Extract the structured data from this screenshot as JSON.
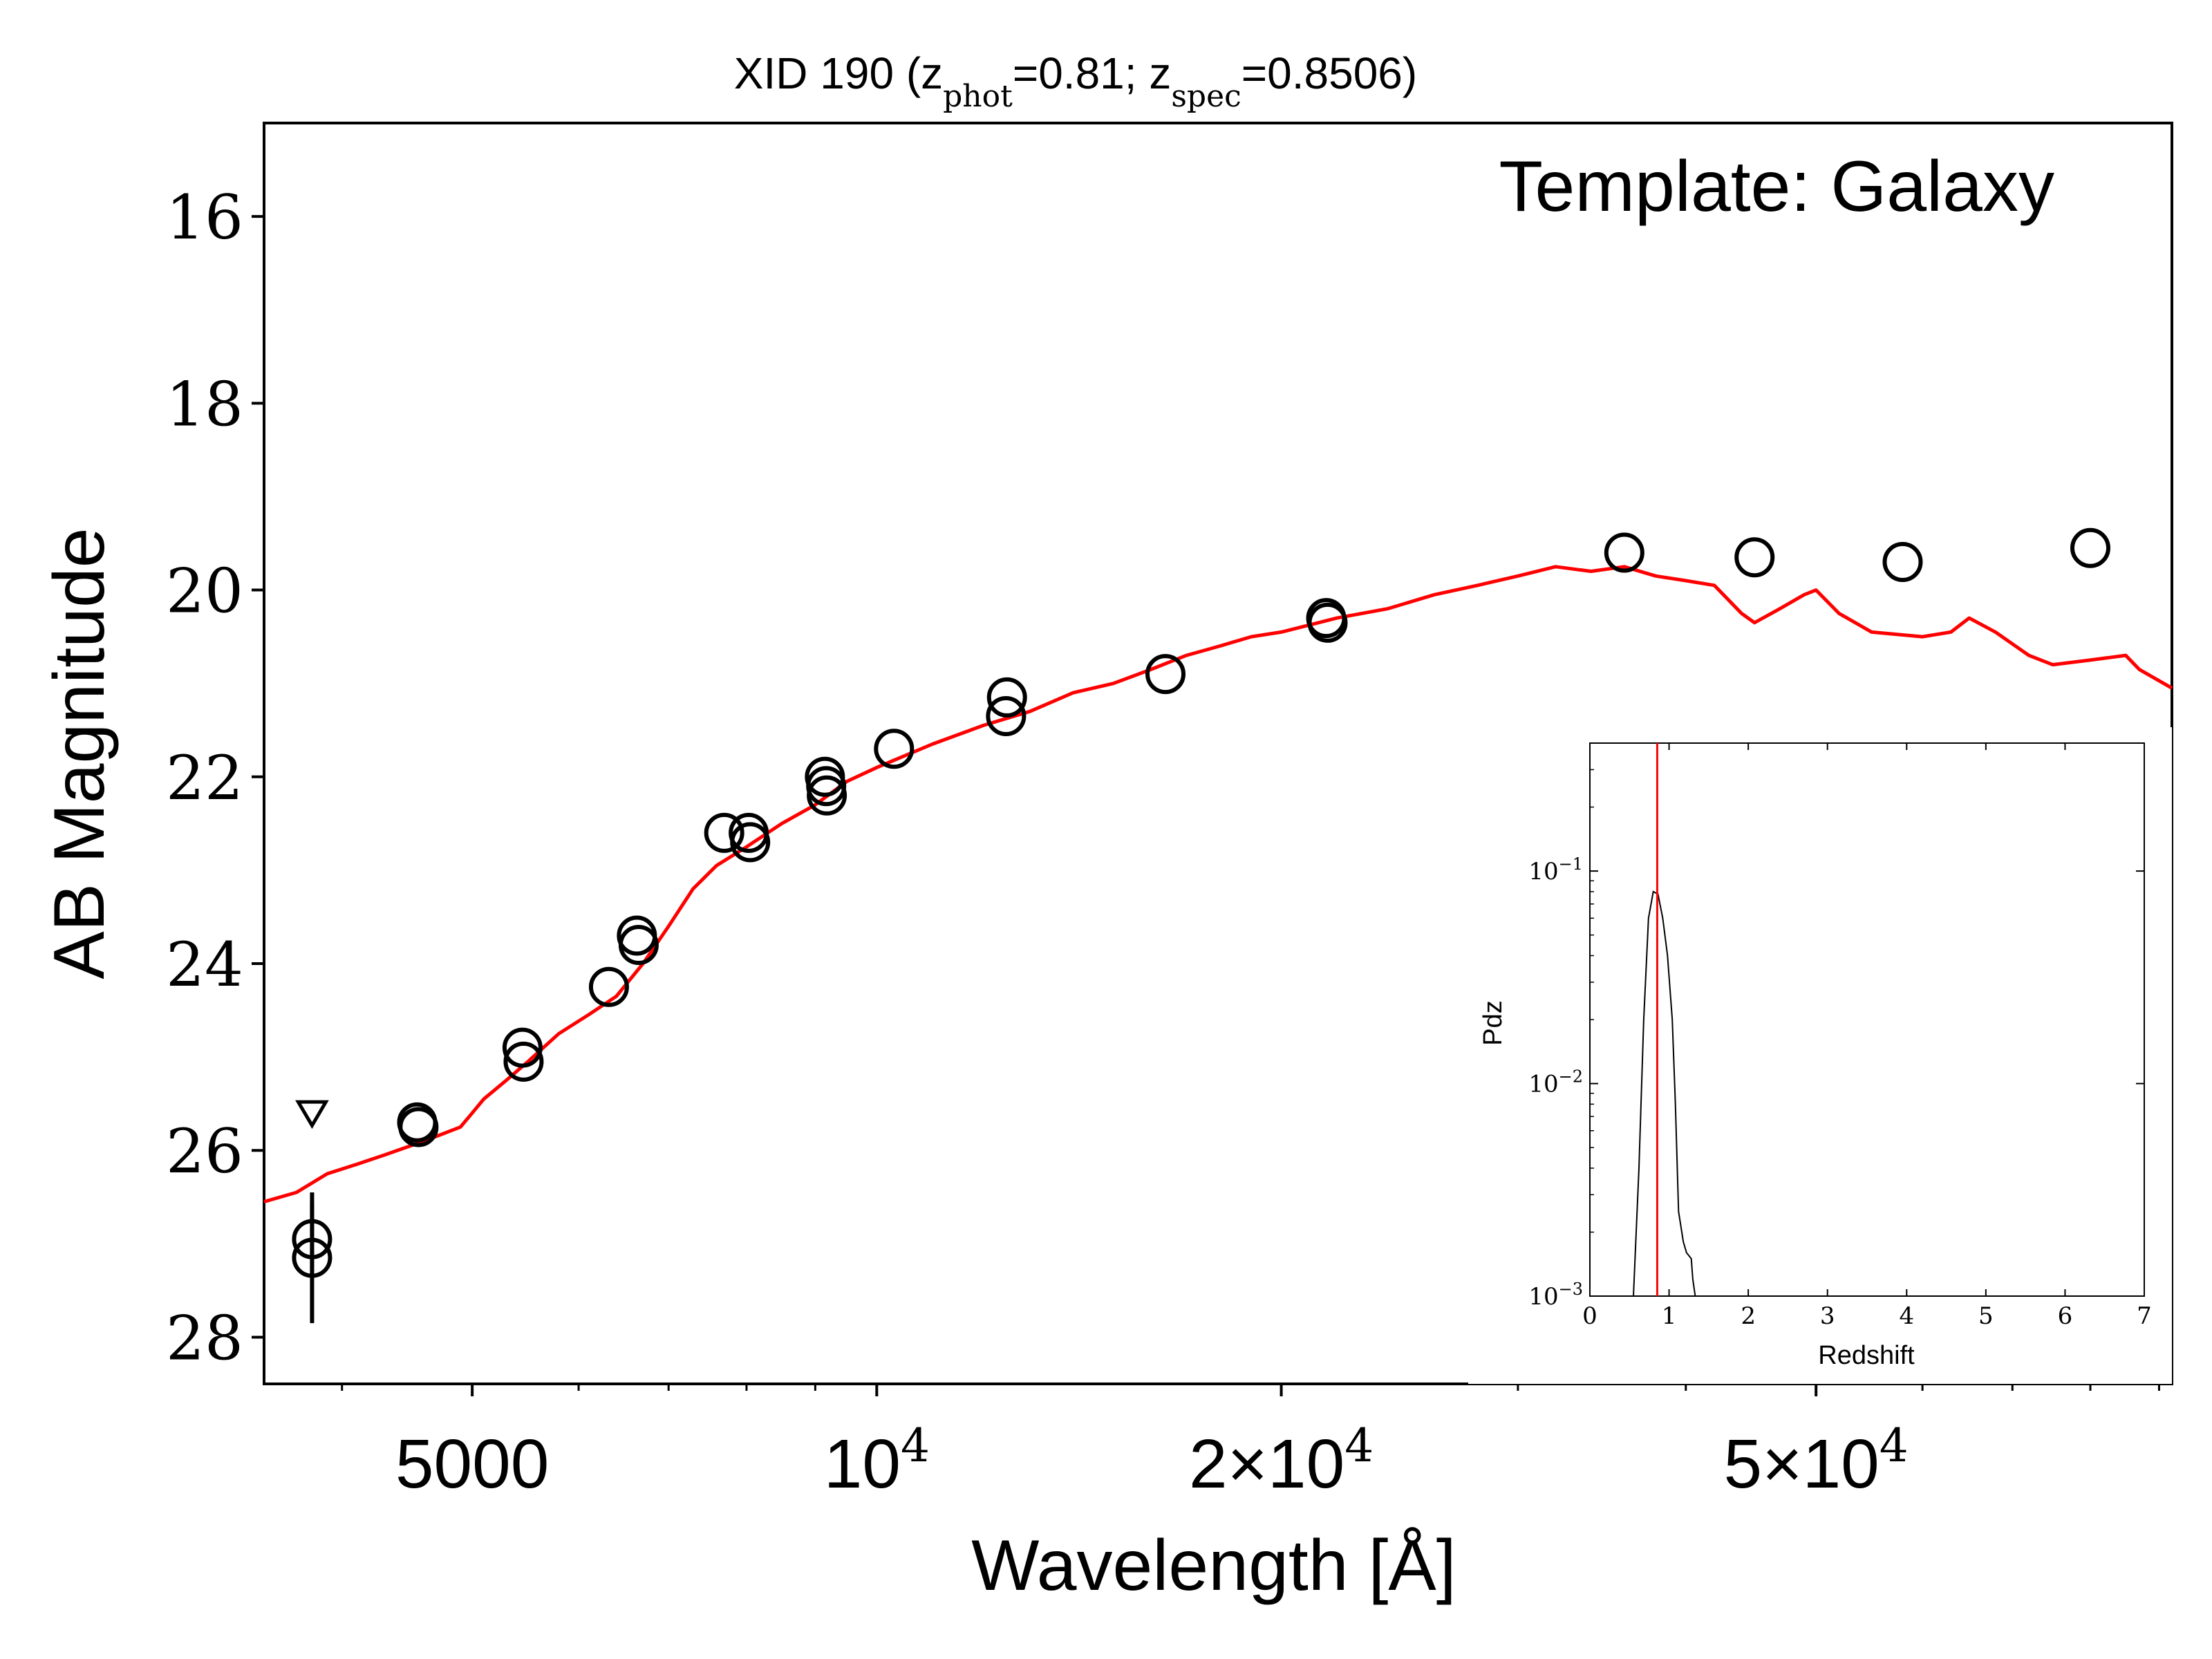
{
  "chart_data": [
    {
      "type": "scatter",
      "title": "XID 190 (z_phot=0.81; z_spec=0.8506)",
      "title_parts": {
        "lead": "XID 190 (z",
        "phot_sub": "phot",
        "phot_val": "=0.81; z",
        "spec_sub": "spec",
        "spec_val": "=0.8506)"
      },
      "annotation": "Template: Galaxy",
      "xlabel": "Wavelength [Å]",
      "ylabel": "AB Magnitude",
      "xscale": "log",
      "xlim": [
        3500,
        92000
      ],
      "ylim": [
        28.5,
        15.0
      ],
      "y_inverted": true,
      "x_ticks": [
        {
          "value": 5000,
          "label": "5000"
        },
        {
          "value": 10000,
          "label": "10^4"
        },
        {
          "value": 20000,
          "label": "2×10^4"
        },
        {
          "value": 50000,
          "label": "5×10^4"
        }
      ],
      "y_ticks": [
        16,
        18,
        20,
        22,
        24,
        26,
        28
      ],
      "grid": false,
      "colors": {
        "model": "#ff0000",
        "points": "#000000"
      },
      "series": [
        {
          "kind": "photometry_points",
          "points": [
            {
              "x": 3800,
              "y": 26.95,
              "yerr": 0.4
            },
            {
              "x": 3800,
              "y": 27.15,
              "yerr": 0.7
            },
            {
              "x": 4550,
              "y": 25.7
            },
            {
              "x": 4560,
              "y": 25.75
            },
            {
              "x": 5450,
              "y": 24.9
            },
            {
              "x": 5460,
              "y": 25.05
            },
            {
              "x": 6320,
              "y": 24.25
            },
            {
              "x": 6630,
              "y": 23.7
            },
            {
              "x": 6650,
              "y": 23.8
            },
            {
              "x": 7700,
              "y": 22.6
            },
            {
              "x": 8030,
              "y": 22.6
            },
            {
              "x": 8050,
              "y": 22.7
            },
            {
              "x": 9150,
              "y": 22.0
            },
            {
              "x": 9170,
              "y": 22.1
            },
            {
              "x": 9180,
              "y": 22.2
            },
            {
              "x": 10300,
              "y": 21.7
            },
            {
              "x": 12500,
              "y": 21.15
            },
            {
              "x": 12480,
              "y": 21.35
            },
            {
              "x": 16400,
              "y": 20.9
            },
            {
              "x": 21600,
              "y": 20.3
            },
            {
              "x": 21650,
              "y": 20.35
            },
            {
              "x": 36000,
              "y": 19.6
            },
            {
              "x": 45000,
              "y": 19.65
            },
            {
              "x": 58000,
              "y": 19.7
            },
            {
              "x": 80000,
              "y": 19.55
            }
          ]
        },
        {
          "kind": "upper_limit",
          "points": [
            {
              "x": 3800,
              "y": 25.6
            }
          ]
        },
        {
          "kind": "model",
          "points": [
            [
              3500,
              26.55
            ],
            [
              3700,
              26.45
            ],
            [
              3900,
              26.25
            ],
            [
              4100,
              26.15
            ],
            [
              4300,
              26.05
            ],
            [
              4500,
              25.95
            ],
            [
              4700,
              25.85
            ],
            [
              4900,
              25.75
            ],
            [
              5000,
              25.6
            ],
            [
              5100,
              25.45
            ],
            [
              5300,
              25.25
            ],
            [
              5500,
              25.05
            ],
            [
              5800,
              24.75
            ],
            [
              6100,
              24.55
            ],
            [
              6400,
              24.35
            ],
            [
              6700,
              24.0
            ],
            [
              7000,
              23.6
            ],
            [
              7300,
              23.2
            ],
            [
              7600,
              22.95
            ],
            [
              8000,
              22.75
            ],
            [
              8500,
              22.5
            ],
            [
              9000,
              22.3
            ],
            [
              9500,
              22.05
            ],
            [
              10000,
              21.9
            ],
            [
              11000,
              21.65
            ],
            [
              12000,
              21.45
            ],
            [
              13000,
              21.3
            ],
            [
              14000,
              21.1
            ],
            [
              15000,
              21.0
            ],
            [
              16000,
              20.85
            ],
            [
              17000,
              20.7
            ],
            [
              18000,
              20.6
            ],
            [
              19000,
              20.5
            ],
            [
              20000,
              20.45
            ],
            [
              22000,
              20.3
            ],
            [
              24000,
              20.2
            ],
            [
              26000,
              20.05
            ],
            [
              28000,
              19.95
            ],
            [
              30000,
              19.85
            ],
            [
              32000,
              19.75
            ],
            [
              34000,
              19.8
            ],
            [
              36000,
              19.75
            ],
            [
              38000,
              19.85
            ],
            [
              40000,
              19.9
            ],
            [
              42000,
              19.95
            ],
            [
              44000,
              20.25
            ],
            [
              45000,
              20.35
            ],
            [
              47000,
              20.2
            ],
            [
              49000,
              20.05
            ],
            [
              50000,
              20.0
            ],
            [
              52000,
              20.25
            ],
            [
              55000,
              20.45
            ],
            [
              60000,
              20.5
            ],
            [
              63000,
              20.45
            ],
            [
              65000,
              20.3
            ],
            [
              68000,
              20.45
            ],
            [
              72000,
              20.7
            ],
            [
              75000,
              20.8
            ],
            [
              80000,
              20.75
            ],
            [
              85000,
              20.7
            ],
            [
              87000,
              20.85
            ],
            [
              92000,
              21.05
            ]
          ]
        }
      ]
    },
    {
      "type": "line",
      "ylabel": "Pdz",
      "xlabel": "Redshift",
      "xlim": [
        0,
        7
      ],
      "ylim": [
        0.001,
        0.4
      ],
      "yscale": "log",
      "x_ticks": [
        "0",
        "1",
        "2",
        "3",
        "4",
        "5",
        "6",
        "7"
      ],
      "y_ticks": [
        {
          "value": 0.1,
          "base": "10",
          "exp": "−1"
        },
        {
          "value": 0.01,
          "base": "10",
          "exp": "−2"
        },
        {
          "value": 0.001,
          "base": "10",
          "exp": "−3"
        }
      ],
      "colors": {
        "pdz": "#000000",
        "zspec_line": "#ff0000"
      },
      "zspec_marker": 0.8506,
      "series": [
        {
          "name": "",
          "points": [
            [
              0.55,
              0.001
            ],
            [
              0.62,
              0.004
            ],
            [
              0.68,
              0.02
            ],
            [
              0.74,
              0.06
            ],
            [
              0.8,
              0.08
            ],
            [
              0.86,
              0.078
            ],
            [
              0.92,
              0.06
            ],
            [
              0.98,
              0.04
            ],
            [
              1.04,
              0.02
            ],
            [
              1.08,
              0.008
            ],
            [
              1.12,
              0.0025
            ],
            [
              1.18,
              0.0018
            ],
            [
              1.22,
              0.0016
            ],
            [
              1.28,
              0.0015
            ],
            [
              1.3,
              0.0012
            ],
            [
              1.33,
              0.001
            ]
          ]
        }
      ]
    }
  ]
}
